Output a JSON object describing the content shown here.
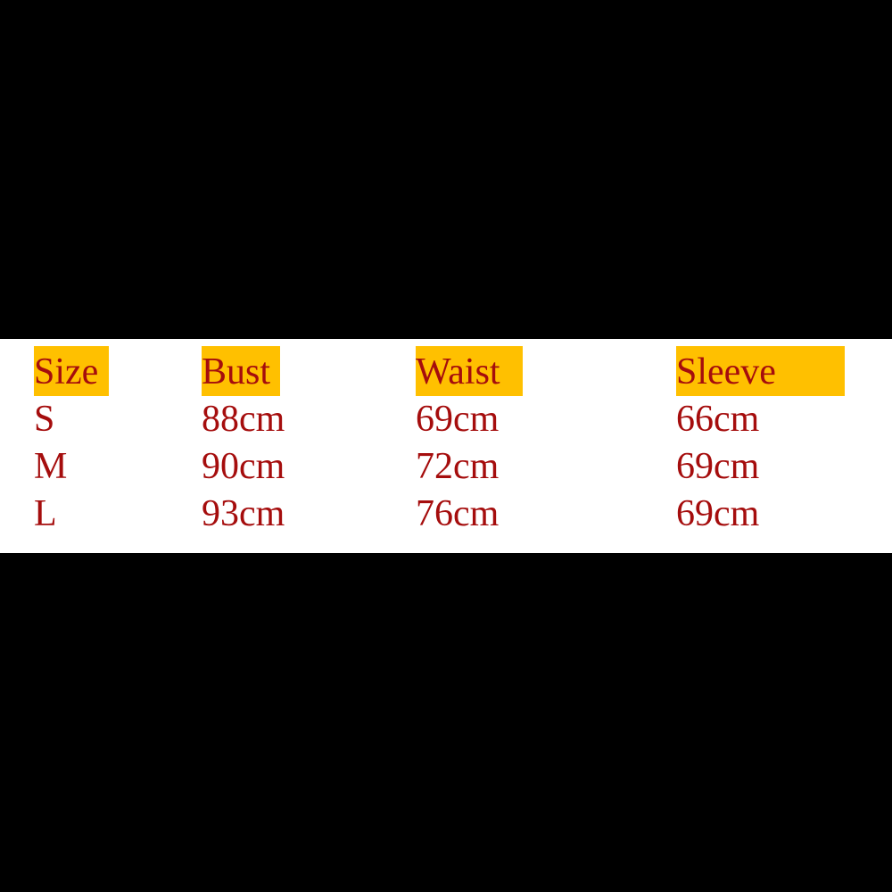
{
  "table": {
    "headers": [
      "Size",
      "Bust",
      "Waist",
      "Sleeve"
    ],
    "rows": [
      [
        "S",
        "88cm",
        "69cm",
        "66cm"
      ],
      [
        "M",
        "90cm",
        "72cm",
        "69cm"
      ],
      [
        "L",
        "93cm",
        "76cm",
        "69cm"
      ]
    ]
  },
  "colors": {
    "text": "#a50d0d",
    "header_highlight": "#ffc000",
    "background": "#000000"
  }
}
